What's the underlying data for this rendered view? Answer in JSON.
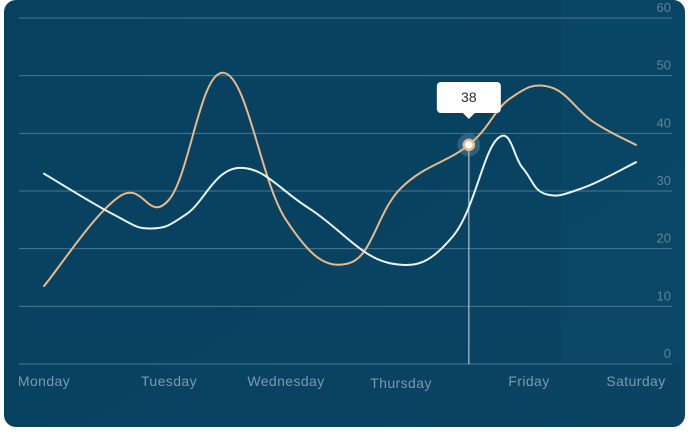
{
  "chart_data": {
    "type": "line",
    "categories": [
      "Monday",
      "Tuesday",
      "Wednesday",
      "Thursday",
      "Friday",
      "Saturday"
    ],
    "y_ticks": [
      "0",
      "10",
      "20",
      "30",
      "40",
      "50",
      "60"
    ],
    "ylim": [
      0,
      60
    ],
    "grid": true,
    "series": [
      {
        "color": "#e9b98a",
        "points": [
          [
            0.0,
            13.5
          ],
          [
            0.6,
            29
          ],
          [
            1.0,
            28.5
          ],
          [
            1.47,
            50.5
          ],
          [
            2.0,
            25
          ],
          [
            2.55,
            17.5
          ],
          [
            3.0,
            30.5
          ],
          [
            3.53,
            38
          ],
          [
            3.85,
            46
          ],
          [
            4.2,
            48
          ],
          [
            4.6,
            42
          ],
          [
            5.0,
            38
          ]
        ]
      },
      {
        "color": "#eaf4f8",
        "points": [
          [
            0.0,
            33
          ],
          [
            0.55,
            26
          ],
          [
            0.85,
            23.5
          ],
          [
            1.15,
            26
          ],
          [
            1.6,
            34
          ],
          [
            2.2,
            27
          ],
          [
            2.9,
            17.5
          ],
          [
            3.4,
            22
          ],
          [
            3.75,
            39
          ],
          [
            3.95,
            34
          ],
          [
            4.15,
            29.5
          ],
          [
            4.5,
            30.5
          ],
          [
            5.0,
            35
          ]
        ]
      }
    ],
    "tooltip": {
      "label": "38",
      "x": 3.53,
      "y": 38
    }
  }
}
